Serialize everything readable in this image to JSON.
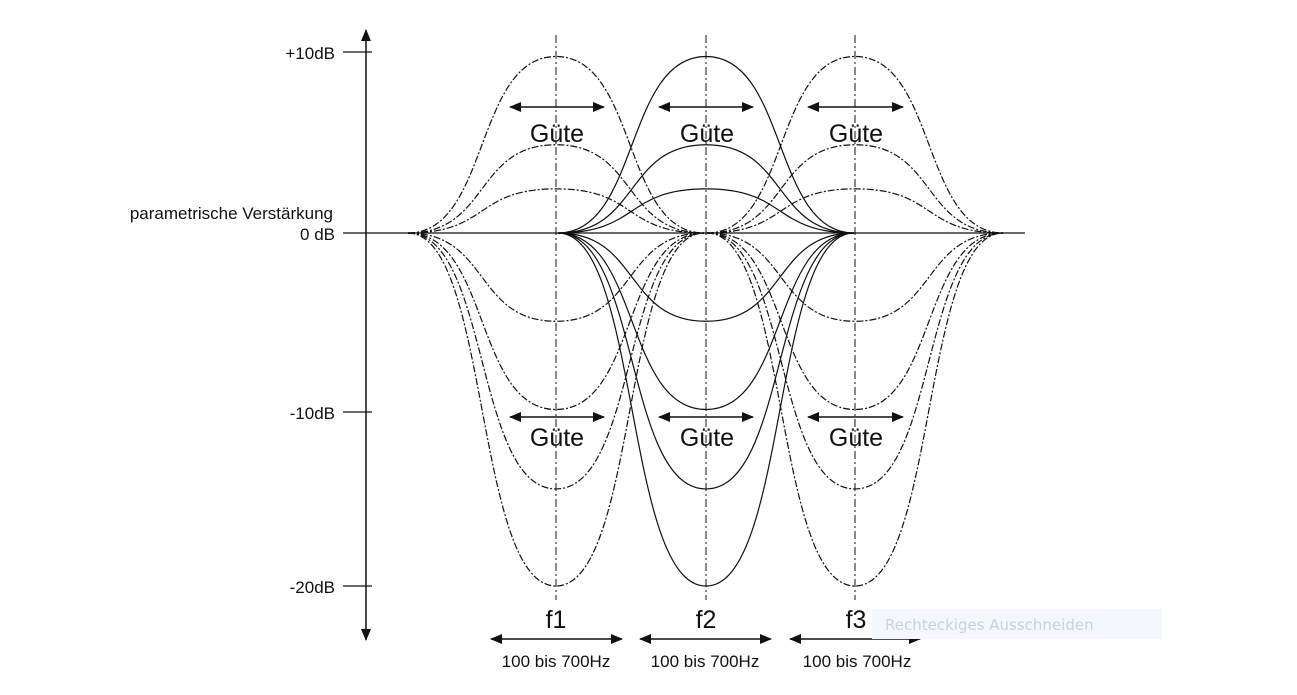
{
  "y_axis": {
    "title": "parametrische Verstärkung",
    "ticks": [
      {
        "label": "+10dB",
        "db": 10
      },
      {
        "label": "0 dB",
        "db": 0
      },
      {
        "label": "-10dB",
        "db": -10
      },
      {
        "label": "-20dB",
        "db": -20
      }
    ]
  },
  "bands": [
    {
      "label": "f1",
      "range": "100 bis 700Hz",
      "q_label": "Güte",
      "style": "dash-dot"
    },
    {
      "label": "f2",
      "range": "100 bis 700Hz",
      "q_label": "Güte",
      "style": "solid"
    },
    {
      "label": "f3",
      "range": "100 bis 700Hz",
      "q_label": "Güte",
      "style": "dash-dot"
    }
  ],
  "gain_levels_db": [
    10,
    5,
    2.5,
    -5,
    -10,
    -14.5,
    -20
  ],
  "colors": {
    "line": "#111111",
    "background": "#ffffff"
  },
  "overlay": {
    "text": "Rechteckiges Ausschneiden"
  }
}
